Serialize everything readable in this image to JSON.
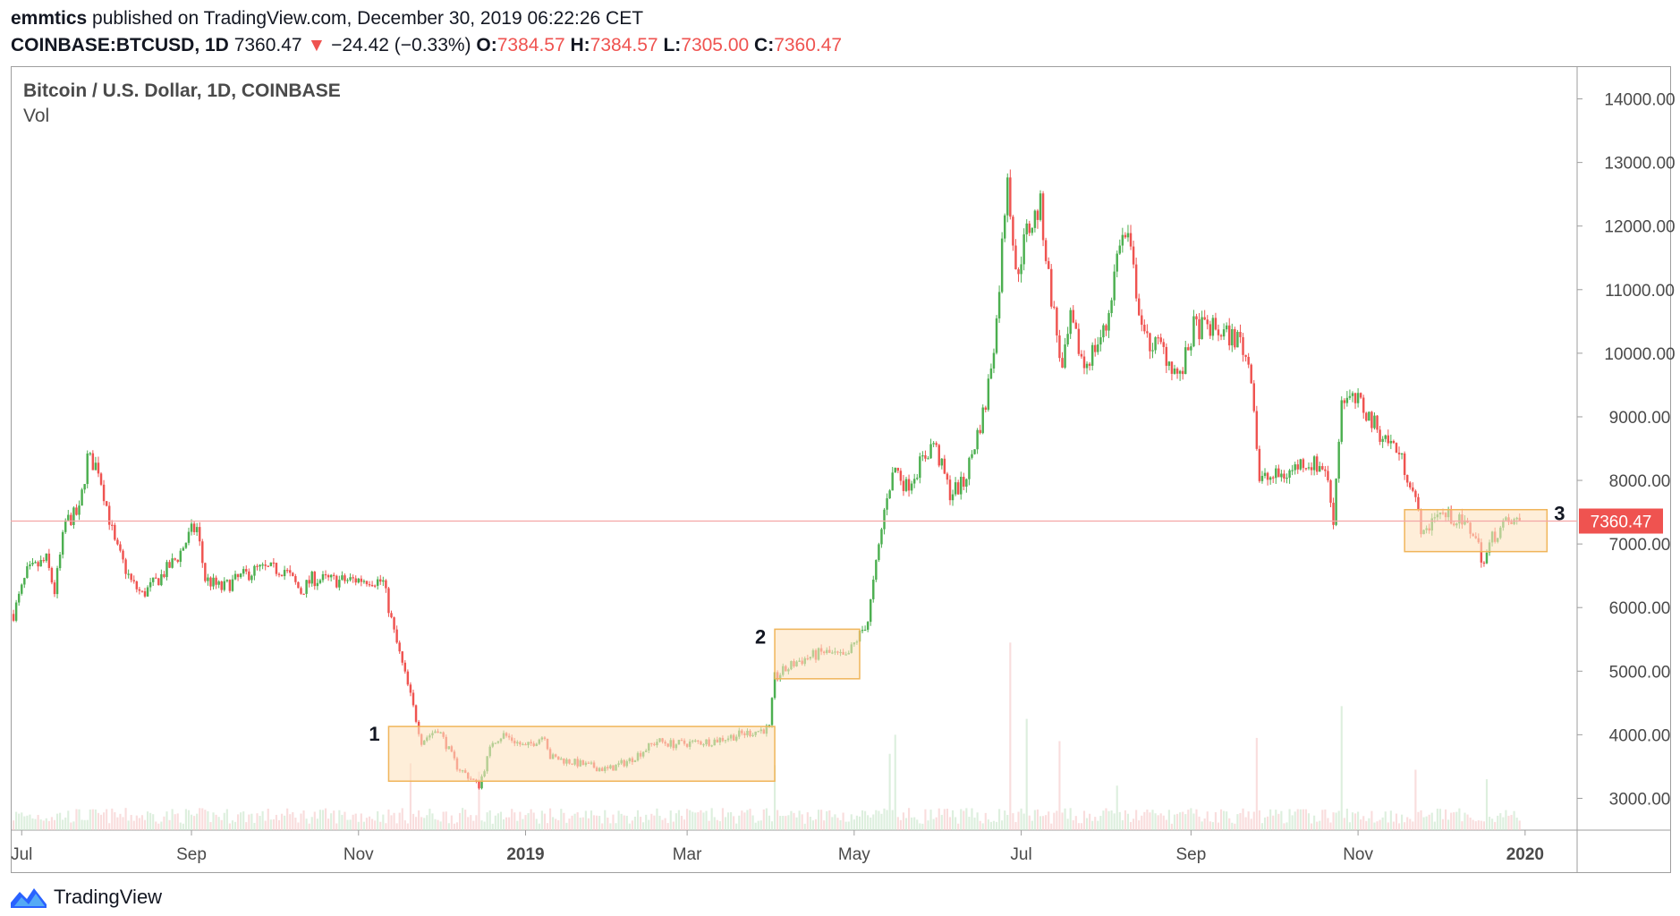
{
  "header": {
    "author": "emmtics",
    "published": " published on TradingView.com, December 30, 2019 06:22:26 CET",
    "symbol": "COINBASE:BTCUSD, 1D",
    "last": "7360.47",
    "change": "−24.42 (−0.33%)",
    "o_label": "O:",
    "o": "7384.57",
    "h_label": "H:",
    "h": "7384.57",
    "l_label": "L:",
    "l": "7305.00",
    "c_label": "C:",
    "c": "7360.47"
  },
  "legend": {
    "title": "Bitcoin / U.S. Dollar, 1D, COINBASE",
    "volume": "Vol"
  },
  "footer": {
    "brand": "TradingView"
  },
  "colors": {
    "up": "#4caf50",
    "down": "#ef5350",
    "zone_fill": "#fde3c0",
    "zone_stroke": "#f0b55a",
    "price_line": "#f4a6a6"
  },
  "chart_data": {
    "type": "candlestick",
    "title": "Bitcoin / U.S. Dollar, 1D, COINBASE",
    "ylim": [
      2500,
      14500
    ],
    "y_ticks": [
      "14000.00",
      "13000.00",
      "12000.00",
      "11000.00",
      "10000.00",
      "9000.00",
      "8000.00",
      "7000.00",
      "6000.00",
      "5000.00",
      "4000.00",
      "3000.00"
    ],
    "x_ticks": [
      "Jul",
      "Sep",
      "Nov",
      "2019",
      "Mar",
      "May",
      "Jul",
      "Sep",
      "Nov",
      "2020"
    ],
    "x_tick_dates": [
      "2018-07-01",
      "2018-09-01",
      "2018-11-01",
      "2019-01-01",
      "2019-03-01",
      "2019-05-01",
      "2019-07-01",
      "2019-09-01",
      "2019-11-01",
      "2020-01-01"
    ],
    "price_marker": "7360.47",
    "close_path": [
      [
        "2018-06-28",
        5900
      ],
      [
        "2018-07-03",
        6550
      ],
      [
        "2018-07-10",
        6750
      ],
      [
        "2018-07-13",
        6250
      ],
      [
        "2018-07-17",
        7350
      ],
      [
        "2018-07-22",
        7500
      ],
      [
        "2018-07-25",
        8350
      ],
      [
        "2018-07-29",
        8200
      ],
      [
        "2018-08-04",
        7000
      ],
      [
        "2018-08-10",
        6400
      ],
      [
        "2018-08-14",
        6200
      ],
      [
        "2018-08-20",
        6450
      ],
      [
        "2018-08-27",
        6800
      ],
      [
        "2018-09-01",
        7200
      ],
      [
        "2018-09-03",
        7250
      ],
      [
        "2018-09-06",
        6450
      ],
      [
        "2018-09-12",
        6300
      ],
      [
        "2018-09-20",
        6500
      ],
      [
        "2018-09-25",
        6600
      ],
      [
        "2018-10-05",
        6600
      ],
      [
        "2018-10-11",
        6250
      ],
      [
        "2018-10-15",
        6450
      ],
      [
        "2018-10-25",
        6420
      ],
      [
        "2018-11-05",
        6450
      ],
      [
        "2018-11-10",
        6400
      ],
      [
        "2018-11-14",
        5600
      ],
      [
        "2018-11-20",
        4600
      ],
      [
        "2018-11-24",
        3900
      ],
      [
        "2018-11-30",
        4100
      ],
      [
        "2018-12-07",
        3500
      ],
      [
        "2018-12-15",
        3200
      ],
      [
        "2018-12-20",
        3900
      ],
      [
        "2018-12-24",
        4000
      ],
      [
        "2019-01-01",
        3800
      ],
      [
        "2019-01-08",
        4000
      ],
      [
        "2019-01-10",
        3650
      ],
      [
        "2019-01-20",
        3550
      ],
      [
        "2019-01-31",
        3450
      ],
      [
        "2019-02-08",
        3600
      ],
      [
        "2019-02-18",
        3900
      ],
      [
        "2019-02-24",
        3850
      ],
      [
        "2019-03-10",
        3900
      ],
      [
        "2019-03-20",
        4000
      ],
      [
        "2019-03-31",
        4100
      ],
      [
        "2019-04-02",
        4900
      ],
      [
        "2019-04-10",
        5150
      ],
      [
        "2019-04-20",
        5300
      ],
      [
        "2019-04-28",
        5200
      ],
      [
        "2019-05-06",
        5800
      ],
      [
        "2019-05-13",
        7800
      ],
      [
        "2019-05-16",
        8200
      ],
      [
        "2019-05-20",
        7900
      ],
      [
        "2019-05-30",
        8600
      ],
      [
        "2019-06-05",
        7800
      ],
      [
        "2019-06-10",
        7950
      ],
      [
        "2019-06-18",
        9200
      ],
      [
        "2019-06-22",
        10500
      ],
      [
        "2019-06-26",
        12900
      ],
      [
        "2019-06-29",
        11200
      ],
      [
        "2019-07-03",
        11900
      ],
      [
        "2019-07-08",
        12300
      ],
      [
        "2019-07-11",
        11200
      ],
      [
        "2019-07-16",
        9700
      ],
      [
        "2019-07-19",
        10500
      ],
      [
        "2019-07-24",
        9800
      ],
      [
        "2019-08-01",
        10400
      ],
      [
        "2019-08-06",
        11800
      ],
      [
        "2019-08-09",
        11800
      ],
      [
        "2019-08-15",
        10200
      ],
      [
        "2019-08-21",
        10100
      ],
      [
        "2019-08-28",
        9600
      ],
      [
        "2019-09-02",
        10400
      ],
      [
        "2019-09-08",
        10400
      ],
      [
        "2019-09-19",
        10200
      ],
      [
        "2019-09-23",
        9700
      ],
      [
        "2019-09-26",
        8000
      ],
      [
        "2019-10-06",
        8100
      ],
      [
        "2019-10-12",
        8300
      ],
      [
        "2019-10-20",
        8200
      ],
      [
        "2019-10-23",
        7400
      ],
      [
        "2019-10-26",
        9300
      ],
      [
        "2019-11-02",
        9200
      ],
      [
        "2019-11-08",
        8800
      ],
      [
        "2019-11-15",
        8500
      ],
      [
        "2019-11-20",
        8000
      ],
      [
        "2019-11-25",
        7100
      ],
      [
        "2019-11-29",
        7500
      ],
      [
        "2019-12-06",
        7400
      ],
      [
        "2019-12-13",
        7200
      ],
      [
        "2019-12-17",
        6700
      ],
      [
        "2019-12-20",
        7100
      ],
      [
        "2019-12-24",
        7300
      ],
      [
        "2019-12-30",
        7360
      ]
    ],
    "volume_spikes": [
      [
        "2018-11-20",
        3550
      ],
      [
        "2018-12-15",
        3420
      ],
      [
        "2019-04-02",
        3520
      ],
      [
        "2019-05-14",
        3700
      ],
      [
        "2019-05-16",
        4000
      ],
      [
        "2019-06-27",
        5450
      ],
      [
        "2019-07-03",
        4250
      ],
      [
        "2019-07-15",
        3900
      ],
      [
        "2019-08-05",
        3200
      ],
      [
        "2019-09-25",
        3950
      ],
      [
        "2019-10-26",
        4450
      ],
      [
        "2019-11-22",
        3450
      ],
      [
        "2019-12-18",
        3300
      ]
    ],
    "annotations": [
      {
        "label": "1",
        "from": "2018-11-12",
        "to": "2019-04-02",
        "low": 3270,
        "high": 4130
      },
      {
        "label": "2",
        "from": "2019-04-02",
        "to": "2019-05-03",
        "low": 4880,
        "high": 5660
      },
      {
        "label": "3",
        "from": "2019-11-18",
        "to": "2020-01-09",
        "low": 6880,
        "high": 7540
      }
    ]
  }
}
